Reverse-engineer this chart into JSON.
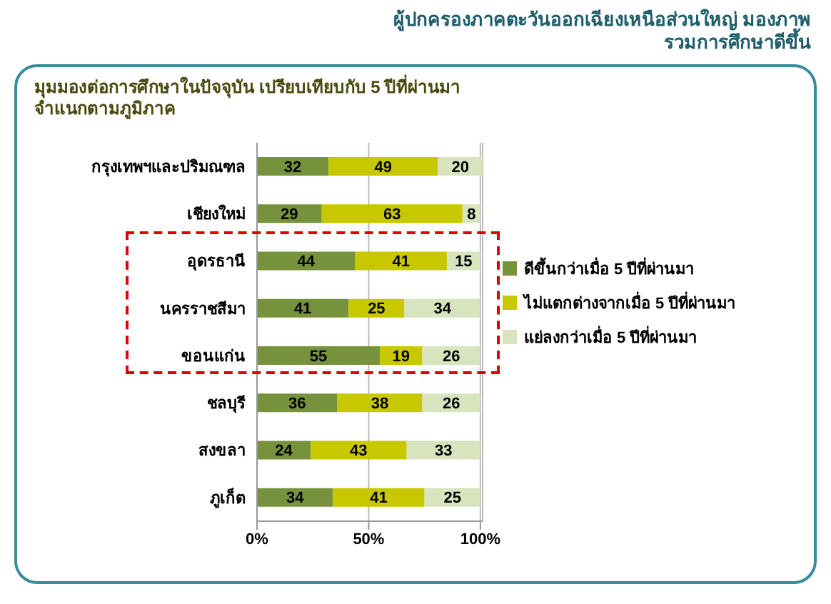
{
  "chart_data": {
    "type": "bar",
    "orientation": "horizontal",
    "stacked": true,
    "title": "ผู้ปกครองภาคตะวันออกเฉียงเหนือส่วนใหญ่ มองภาพรวมการศึกษาดีขึ้น",
    "subtitle": "มุมมองต่อการศึกษาในปัจจุบัน เปรียบเทียบกับ 5 ปีที่ผ่านมา จำแนกตามภูมิภาค",
    "categories": [
      "กรุงเทพฯและปริมณฑล",
      "เชียงใหม่",
      "อุดรธานี",
      "นครราชสีมา",
      "ขอนแก่น",
      "ชลบุรี",
      "สงขลา",
      "ภูเก็ต"
    ],
    "series": [
      {
        "name": "ดีขึ้นกว่าเมื่อ 5 ปีที่ผ่านมา",
        "color": "#76923c",
        "values": [
          32,
          29,
          44,
          41,
          55,
          36,
          24,
          34
        ]
      },
      {
        "name": "ไม่แตกต่างจากเมื่อ 5 ปีที่ผ่านมา",
        "color": "#c8c800",
        "values": [
          49,
          63,
          41,
          25,
          19,
          38,
          43,
          41
        ]
      },
      {
        "name": "แย่ลงกว่าเมื่อ 5 ปีที่ผ่านมา",
        "color": "#d7e4bd",
        "values": [
          20,
          8,
          15,
          34,
          26,
          26,
          33,
          25
        ]
      }
    ],
    "xlim": [
      0,
      101
    ],
    "xticks": [
      {
        "value": 0,
        "label": "0%"
      },
      {
        "value": 50,
        "label": "50%"
      },
      {
        "value": 100,
        "label": "100%"
      }
    ],
    "grid": "x",
    "legend": "right",
    "data_labels": true
  }
}
